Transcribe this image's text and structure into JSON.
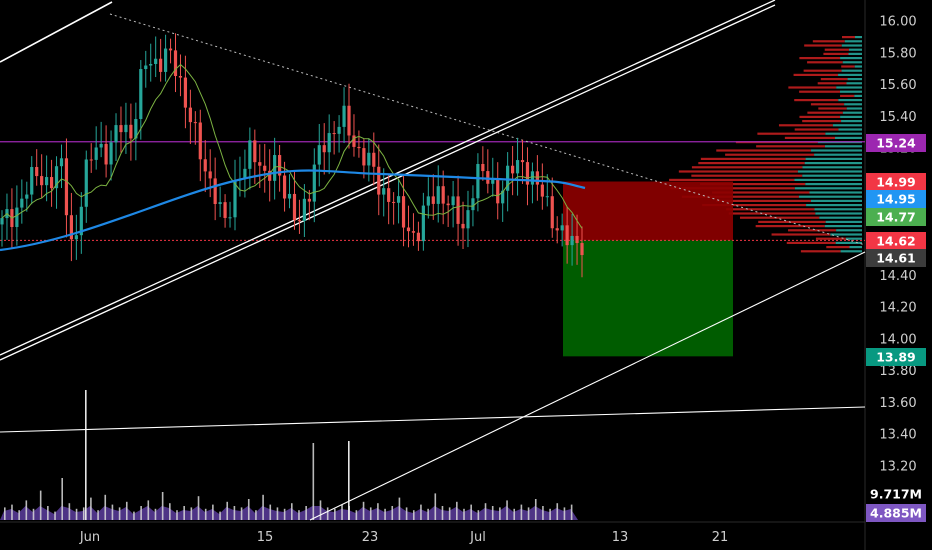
{
  "chart_data": {
    "type": "candlestick",
    "symbol": "",
    "y_axis": {
      "ticks": [
        "13.20",
        "13.40",
        "13.60",
        "13.80",
        "14.00",
        "14.20",
        "14.40",
        "14.60",
        "14.80",
        "15.00",
        "15.20",
        "15.40",
        "15.60",
        "15.80",
        "16.00"
      ],
      "range": [
        13.08,
        16.1
      ]
    },
    "x_axis": {
      "ticks": [
        "Jun",
        "15",
        "23",
        "Jul",
        "13",
        "21"
      ]
    },
    "price_badges": [
      {
        "label": "15.24",
        "value": 15.24,
        "color": "#9c27b0"
      },
      {
        "label": "14.99",
        "value": 14.99,
        "color": "#f23645"
      },
      {
        "label": "14.95",
        "value": 14.95,
        "color": "#2196f3"
      },
      {
        "label": "14.77",
        "value": 14.77,
        "color": "#4caf50"
      },
      {
        "label": "14.62",
        "value": 14.62,
        "color": "#f23645"
      },
      {
        "label": "14.61",
        "value": 14.61,
        "color": "#3c3c3c"
      },
      {
        "label": "13.89",
        "value": 13.89,
        "color": "#089981"
      }
    ],
    "volume_badges": [
      {
        "label": "9.717M",
        "color": "#000000"
      },
      {
        "label": "4.885M",
        "color": "#7e57c2"
      }
    ],
    "position_tool": {
      "entry": 14.62,
      "stop": 14.99,
      "target": 13.89
    },
    "price_lines": [
      {
        "name": "resistance",
        "value": 15.24,
        "color": "#9c27b0"
      },
      {
        "name": "current",
        "value": 14.62,
        "color": "#f23645"
      }
    ],
    "volume_profile": {
      "rows": 40,
      "note": "horizontal volume-by-price histogram on right side"
    },
    "series": {
      "price_path": [
        [
          0,
          14.72
        ],
        [
          2,
          14.8
        ],
        [
          4,
          14.92
        ],
        [
          6,
          15.05
        ],
        [
          8,
          14.98
        ],
        [
          10,
          15.08
        ],
        [
          12,
          14.55
        ],
        [
          14,
          15.0
        ],
        [
          16,
          15.25
        ],
        [
          18,
          15.15
        ],
        [
          20,
          15.35
        ],
        [
          22,
          15.3
        ],
        [
          24,
          15.72
        ],
        [
          26,
          15.75
        ],
        [
          28,
          15.8
        ],
        [
          30,
          15.62
        ],
        [
          32,
          15.4
        ],
        [
          34,
          15.05
        ],
        [
          36,
          14.95
        ],
        [
          38,
          14.68
        ],
        [
          40,
          15.05
        ],
        [
          42,
          15.2
        ],
        [
          44,
          15.0
        ],
        [
          46,
          15.15
        ],
        [
          48,
          14.85
        ],
        [
          50,
          14.78
        ],
        [
          52,
          14.9
        ],
        [
          54,
          15.25
        ],
        [
          56,
          15.3
        ],
        [
          58,
          15.38
        ],
        [
          60,
          15.2
        ],
        [
          62,
          15.1
        ],
        [
          64,
          14.95
        ],
        [
          66,
          14.88
        ],
        [
          68,
          14.72
        ],
        [
          70,
          14.65
        ],
        [
          72,
          14.85
        ],
        [
          74,
          14.95
        ],
        [
          76,
          14.82
        ],
        [
          78,
          14.68
        ],
        [
          80,
          15.05
        ],
        [
          82,
          15.0
        ],
        [
          84,
          14.92
        ],
        [
          86,
          15.05
        ],
        [
          88,
          15.12
        ],
        [
          90,
          14.98
        ],
        [
          92,
          14.85
        ],
        [
          94,
          14.7
        ],
        [
          96,
          14.58
        ],
        [
          98,
          14.62
        ]
      ],
      "volume": [
        0.9,
        1.1,
        0.7,
        1.4,
        0.8,
        2.1,
        1.0,
        0.6,
        3.0,
        1.2,
        0.8,
        0.9,
        1.6,
        0.7,
        1.8,
        1.1,
        0.9,
        1.3,
        0.6,
        1.0,
        1.4,
        0.8,
        2.0,
        1.2,
        0.7,
        1.0,
        0.9,
        1.7,
        0.8,
        1.1,
        0.6,
        1.3,
        1.0,
        0.9,
        1.5,
        0.7,
        1.8,
        1.1,
        0.9,
        0.8,
        1.2,
        0.7,
        1.0,
        5.5,
        1.4,
        0.9,
        0.8,
        1.1,
        1.0,
        0.7,
        1.3,
        0.9,
        1.2,
        0.8,
        1.0,
        1.6,
        0.9,
        0.7,
        1.1,
        0.8,
        1.9,
        1.0,
        0.9,
        1.3,
        0.8,
        1.1,
        0.7,
        1.2,
        1.0,
        0.9,
        1.4,
        0.8,
        1.1,
        0.9,
        1.5,
        1.0,
        0.8,
        1.2,
        0.9,
        1.1
      ]
    }
  }
}
